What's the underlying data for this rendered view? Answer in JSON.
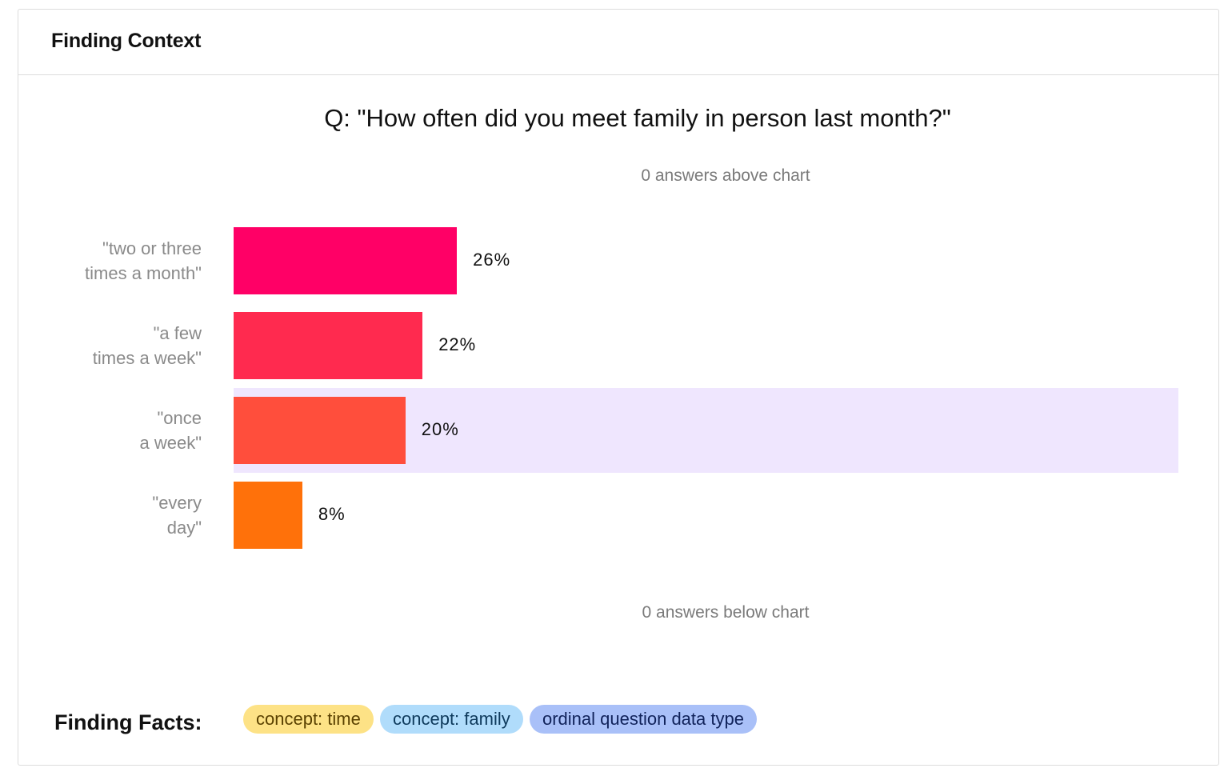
{
  "card": {
    "title": "Finding Context"
  },
  "chart_data": {
    "type": "bar",
    "orientation": "horizontal",
    "title": "Q: \"How often did you meet family in person last month?\"",
    "note_above": "0 answers above chart",
    "note_below": "0 answers below chart",
    "categories": [
      [
        "\"two or three",
        "times a month\""
      ],
      [
        "\"a few",
        "times a week\""
      ],
      [
        "\"once",
        "a week\""
      ],
      [
        "\"every",
        "day\""
      ]
    ],
    "values": [
      26,
      22,
      20,
      8
    ],
    "value_labels": [
      "26%",
      "22%",
      "20%",
      "8%"
    ],
    "colors": [
      "#ff0066",
      "#ff2a4f",
      "#ff4e3c",
      "#ff710a"
    ],
    "highlighted_index": 2,
    "highlight_color": "#efe6fe",
    "xmax": 110
  },
  "facts": {
    "label": "Finding Facts:",
    "chips": [
      {
        "text": "concept: time",
        "bg": "#fde286",
        "color": "#5a4100"
      },
      {
        "text": "concept: family",
        "bg": "#b0dcfb",
        "color": "#0e3a5c"
      },
      {
        "text": "ordinal question data type",
        "bg": "#a9c0f8",
        "color": "#10225a"
      }
    ]
  }
}
